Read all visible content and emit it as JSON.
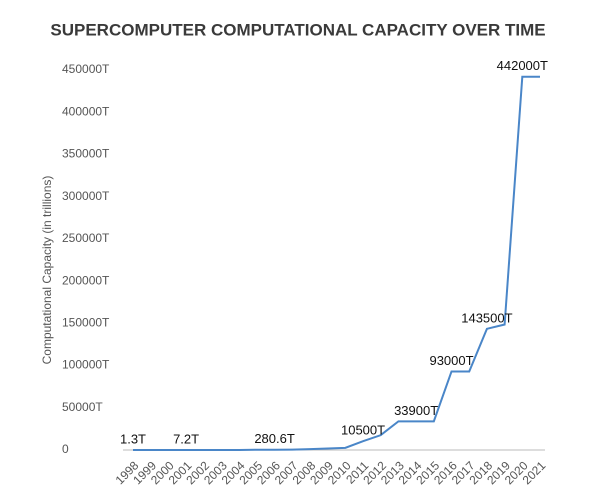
{
  "chart_data": {
    "type": "line",
    "title": "SUPERCOMPUTER COMPUTATIONAL CAPACITY OVER TIME",
    "y_label": "Computational Capacity (in trillions)",
    "categories": [
      "1998",
      "1999",
      "2000",
      "2001",
      "2002",
      "2003",
      "2004",
      "2005",
      "2006",
      "2007",
      "2008",
      "2009",
      "2010",
      "2011",
      "2012",
      "2013",
      "2014",
      "2015",
      "2016",
      "2017",
      "2018",
      "2019",
      "2020",
      "2021"
    ],
    "series": [
      {
        "name": "Computational Capacity",
        "color": "#4a86c8",
        "values": [
          1.3,
          2.1,
          4.9,
          7.2,
          35.9,
          35.9,
          70.7,
          280.6,
          280.6,
          478.2,
          1105,
          1759,
          2566,
          10500,
          17590,
          33900,
          33900,
          33900,
          93000,
          93000,
          143500,
          148600,
          442000,
          442000
        ],
        "value_labels": [
          "1.3T",
          null,
          null,
          "7.2T",
          null,
          null,
          null,
          null,
          "280.6T",
          null,
          null,
          null,
          null,
          "10500T",
          null,
          null,
          "33900T",
          null,
          "93000T",
          null,
          "143500T",
          null,
          "442000T",
          null
        ]
      }
    ],
    "ylim": [
      0,
      450000
    ],
    "yticks": [
      0,
      {
        "value": 50000,
        "label": "50000T"
      },
      {
        "value": 100000,
        "label": "100000T"
      },
      {
        "value": 150000,
        "label": "150000T"
      },
      {
        "value": 200000,
        "label": "200000T"
      },
      {
        "value": 250000,
        "label": "250000T"
      },
      {
        "value": 300000,
        "label": "300000T"
      },
      {
        "value": 350000,
        "label": "350000T"
      },
      {
        "value": 400000,
        "label": "400000T"
      },
      {
        "value": 450000,
        "label": "450000T"
      }
    ],
    "grid": false
  }
}
